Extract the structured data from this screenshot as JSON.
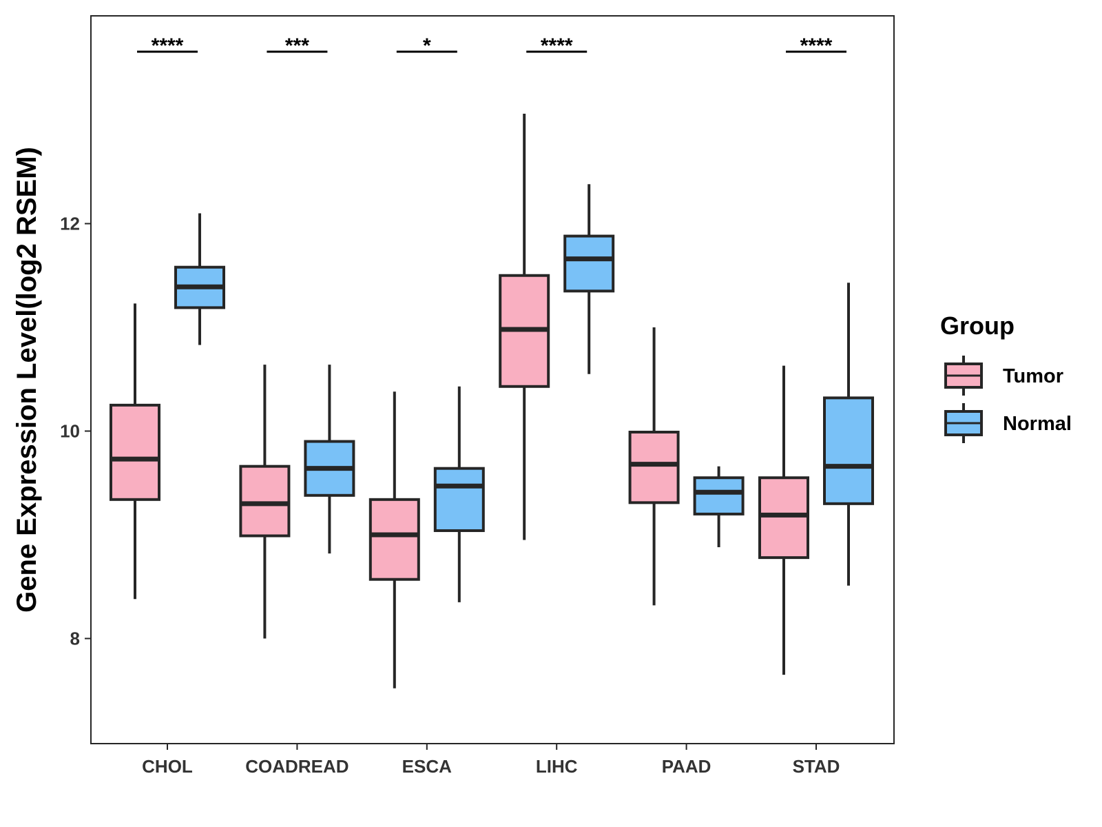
{
  "chart_data": {
    "type": "box",
    "ylabel": "Gene Expression Level(log2 RSEM)",
    "xlabel": "",
    "ylim": [
      7,
      14
    ],
    "y_ticks": [
      8,
      10,
      12
    ],
    "categories": [
      "CHOL",
      "COADREAD",
      "ESCA",
      "LIHC",
      "PAAD",
      "STAD"
    ],
    "legend": {
      "title": "Group",
      "position": "right",
      "entries": [
        "Tumor",
        "Normal"
      ]
    },
    "colors": {
      "Tumor": "#F9AFC1",
      "Normal": "#79C1F7",
      "outline": "#262626"
    },
    "series": [
      {
        "name": "Tumor",
        "boxes": [
          {
            "category": "CHOL",
            "min": 8.38,
            "q1": 9.34,
            "median": 9.73,
            "q3": 10.25,
            "max": 11.23
          },
          {
            "category": "COADREAD",
            "min": 8.0,
            "q1": 8.99,
            "median": 9.3,
            "q3": 9.66,
            "max": 10.64
          },
          {
            "category": "ESCA",
            "min": 7.52,
            "q1": 8.57,
            "median": 9.0,
            "q3": 9.34,
            "max": 10.38
          },
          {
            "category": "LIHC",
            "min": 8.95,
            "q1": 10.43,
            "median": 10.98,
            "q3": 11.5,
            "max": 13.06
          },
          {
            "category": "PAAD",
            "min": 8.32,
            "q1": 9.31,
            "median": 9.68,
            "q3": 9.99,
            "max": 11.0
          },
          {
            "category": "STAD",
            "min": 7.65,
            "q1": 8.78,
            "median": 9.19,
            "q3": 9.55,
            "max": 10.63
          }
        ]
      },
      {
        "name": "Normal",
        "boxes": [
          {
            "category": "CHOL",
            "min": 10.83,
            "q1": 11.19,
            "median": 11.39,
            "q3": 11.58,
            "max": 12.1
          },
          {
            "category": "COADREAD",
            "min": 8.82,
            "q1": 9.38,
            "median": 9.64,
            "q3": 9.9,
            "max": 10.64
          },
          {
            "category": "ESCA",
            "min": 8.35,
            "q1": 9.04,
            "median": 9.47,
            "q3": 9.64,
            "max": 10.43
          },
          {
            "category": "LIHC",
            "min": 10.55,
            "q1": 11.35,
            "median": 11.66,
            "q3": 11.88,
            "max": 12.38
          },
          {
            "category": "PAAD",
            "min": 8.88,
            "q1": 9.2,
            "median": 9.41,
            "q3": 9.55,
            "max": 9.66
          },
          {
            "category": "STAD",
            "min": 8.51,
            "q1": 9.3,
            "median": 9.66,
            "q3": 10.32,
            "max": 11.43
          }
        ]
      }
    ],
    "significance": [
      {
        "category": "CHOL",
        "label": "****"
      },
      {
        "category": "COADREAD",
        "label": "***"
      },
      {
        "category": "ESCA",
        "label": "*"
      },
      {
        "category": "LIHC",
        "label": "****"
      },
      {
        "category": "STAD",
        "label": "****"
      }
    ],
    "grid": false
  }
}
